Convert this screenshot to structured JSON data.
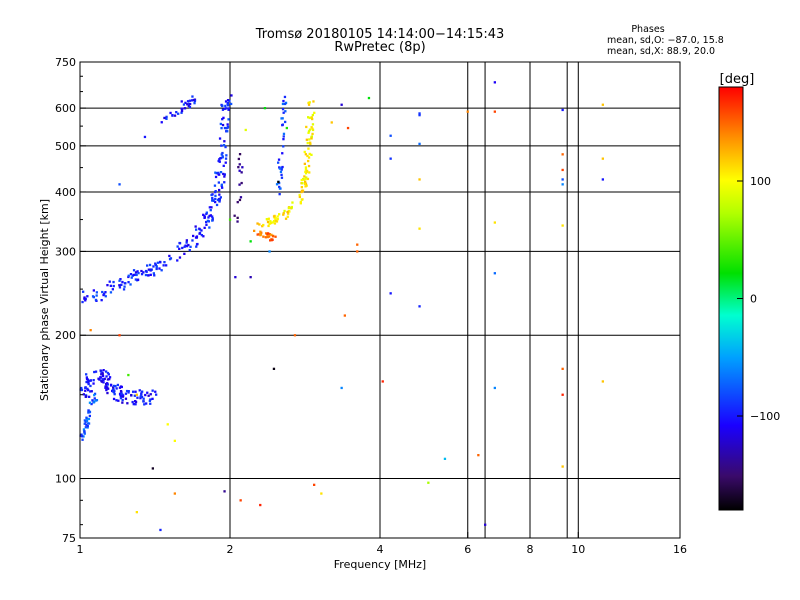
{
  "chart_data": {
    "type": "scatter",
    "title": "Tromsø 20180105 14:14:00−14:15:43",
    "subtitle": "RwPretec (8p)",
    "phases": {
      "title": "Phases",
      "o_line": "mean, sd,O: −87.0, 15.8",
      "x_line": "mean, sd,X:  88.9, 20.0"
    },
    "xlabel": "Frequency [MHz]",
    "ylabel": "Stationary phase Virtual Height [km]",
    "x_scale": "log",
    "y_scale": "log",
    "xlim": [
      1,
      16
    ],
    "ylim": [
      75,
      750
    ],
    "x_ticks": [
      1,
      2,
      4,
      6,
      8,
      10,
      16
    ],
    "x_tick_labels": [
      "1",
      "2",
      "4",
      "6",
      "8",
      "10",
      "16"
    ],
    "y_ticks": [
      75,
      100,
      200,
      300,
      400,
      500,
      600,
      750
    ],
    "y_tick_labels": [
      "75",
      "100",
      "200",
      "300",
      "400",
      "500",
      "600",
      "750"
    ],
    "x_grid": [
      2,
      4,
      6,
      8,
      10
    ],
    "x_grid_extra": [
      6.5,
      9.5
    ],
    "y_grid": [
      100,
      200,
      300,
      400,
      500,
      600
    ],
    "colorbar": {
      "unit": "[deg]",
      "range": [
        -180,
        180
      ],
      "ticks": [
        100,
        0,
        -100
      ],
      "tick_labels": [
        "100",
        "0",
        "−100"
      ]
    },
    "series": [
      {
        "trace": [
          [
            1.02,
            240
          ],
          [
            1.1,
            245
          ],
          [
            1.2,
            255
          ],
          [
            1.3,
            265
          ],
          [
            1.4,
            275
          ],
          [
            1.5,
            285
          ],
          [
            1.6,
            300
          ],
          [
            1.7,
            320
          ],
          [
            1.8,
            345
          ],
          [
            1.85,
            375
          ],
          [
            1.9,
            410
          ],
          [
            1.93,
            460
          ],
          [
            1.95,
            520
          ],
          [
            1.96,
            580
          ],
          [
            1.97,
            630
          ]
        ],
        "spread": 0.06,
        "phase": -95,
        "count": 230
      },
      {
        "trace": [
          [
            1.0,
            150
          ],
          [
            1.05,
            160
          ],
          [
            1.1,
            165
          ],
          [
            1.15,
            158
          ],
          [
            1.2,
            150
          ],
          [
            1.3,
            148
          ],
          [
            1.4,
            148
          ]
        ],
        "spread": 0.07,
        "phase": -102,
        "count": 140
      },
      {
        "trace": [
          [
            1.0,
            120
          ],
          [
            1.03,
            130
          ],
          [
            1.05,
            140
          ],
          [
            1.08,
            150
          ]
        ],
        "spread": 0.03,
        "phase": -75,
        "count": 40
      },
      {
        "trace": [
          [
            1.45,
            560
          ],
          [
            1.55,
            585
          ],
          [
            1.65,
            610
          ],
          [
            1.7,
            630
          ]
        ],
        "spread": 0.03,
        "phase": -100,
        "count": 30
      },
      {
        "trace": [
          [
            2.3,
            340
          ],
          [
            2.45,
            350
          ],
          [
            2.6,
            360
          ],
          [
            2.75,
            385
          ],
          [
            2.82,
            420
          ],
          [
            2.86,
            470
          ],
          [
            2.88,
            520
          ],
          [
            2.9,
            570
          ],
          [
            2.92,
            625
          ]
        ],
        "spread": 0.04,
        "phase": 105,
        "count": 110
      },
      {
        "trace": [
          [
            2.25,
            330
          ],
          [
            2.35,
            325
          ],
          [
            2.45,
            320
          ]
        ],
        "spread": 0.03,
        "phase": 150,
        "count": 25
      },
      {
        "trace": [
          [
            2.5,
            390
          ],
          [
            2.52,
            450
          ],
          [
            2.54,
            510
          ],
          [
            2.56,
            570
          ],
          [
            2.58,
            630
          ]
        ],
        "spread": 0.03,
        "phase": -85,
        "count": 35
      },
      {
        "trace": [
          [
            2.05,
            340
          ],
          [
            2.1,
            400
          ],
          [
            2.1,
            480
          ]
        ],
        "spread": 0.03,
        "phase": -140,
        "count": 15
      }
    ],
    "points": [
      [
        1.2,
        200,
        160
      ],
      [
        1.05,
        205,
        140
      ],
      [
        1.25,
        165,
        40
      ],
      [
        1.3,
        150,
        120
      ],
      [
        1.5,
        130,
        100
      ],
      [
        1.3,
        85,
        110
      ],
      [
        1.45,
        78,
        -95
      ],
      [
        1.55,
        93,
        140
      ],
      [
        1.95,
        94,
        -140
      ],
      [
        2.1,
        90,
        160
      ],
      [
        2.3,
        88,
        170
      ],
      [
        2.45,
        170,
        -175
      ],
      [
        2.95,
        97,
        160
      ],
      [
        3.05,
        93,
        110
      ],
      [
        3.35,
        155,
        -60
      ],
      [
        3.4,
        220,
        150
      ],
      [
        3.6,
        300,
        150
      ],
      [
        3.6,
        310,
        150
      ],
      [
        3.35,
        610,
        -120
      ],
      [
        3.45,
        545,
        160
      ],
      [
        4.05,
        160,
        170
      ],
      [
        4.2,
        470,
        -90
      ],
      [
        4.2,
        525,
        -80
      ],
      [
        4.2,
        245,
        -100
      ],
      [
        4.8,
        230,
        -95
      ],
      [
        4.8,
        580,
        -90
      ],
      [
        4.8,
        505,
        -70
      ],
      [
        4.8,
        335,
        110
      ],
      [
        4.8,
        425,
        120
      ],
      [
        4.8,
        585,
        -90
      ],
      [
        5.0,
        98,
        70
      ],
      [
        5.4,
        110,
        -40
      ],
      [
        6.0,
        590,
        140
      ],
      [
        6.3,
        112,
        150
      ],
      [
        6.5,
        80,
        -120
      ],
      [
        6.8,
        680,
        -110
      ],
      [
        6.8,
        590,
        160
      ],
      [
        6.8,
        345,
        110
      ],
      [
        6.8,
        270,
        -70
      ],
      [
        6.8,
        155,
        -60
      ],
      [
        9.3,
        480,
        150
      ],
      [
        9.3,
        445,
        160
      ],
      [
        9.3,
        425,
        -80
      ],
      [
        9.3,
        415,
        -60
      ],
      [
        9.3,
        340,
        110
      ],
      [
        9.3,
        170,
        150
      ],
      [
        9.3,
        150,
        170
      ],
      [
        9.3,
        106,
        120
      ],
      [
        9.3,
        595,
        -100
      ],
      [
        11.2,
        610,
        120
      ],
      [
        11.2,
        470,
        120
      ],
      [
        11.2,
        425,
        -100
      ],
      [
        11.2,
        160,
        120
      ],
      [
        1.2,
        415,
        -80
      ],
      [
        1.35,
        522,
        -100
      ],
      [
        1.6,
        620,
        -110
      ],
      [
        2.2,
        265,
        -130
      ],
      [
        2.05,
        265,
        -120
      ],
      [
        2.4,
        300,
        -60
      ],
      [
        2.7,
        200,
        150
      ],
      [
        2.5,
        420,
        -180
      ],
      [
        2.35,
        600,
        20
      ],
      [
        2.6,
        545,
        30
      ],
      [
        2.15,
        540,
        90
      ],
      [
        2.0,
        350,
        40
      ],
      [
        1.4,
        105,
        -170
      ],
      [
        1.55,
        120,
        100
      ],
      [
        2.2,
        315,
        20
      ],
      [
        3.8,
        630,
        20
      ],
      [
        3.2,
        560,
        120
      ]
    ]
  }
}
